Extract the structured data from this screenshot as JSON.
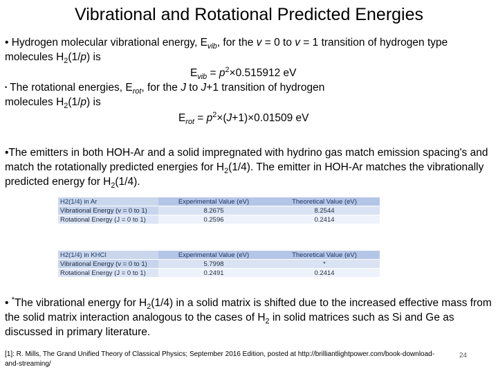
{
  "title": "Vibrational and Rotational Predicted Energies",
  "bullet1": {
    "bullet": "•",
    "text_a": " Hydrogen molecular vibrational energy, E",
    "sub_vib": "vib",
    "text_b": ", for the ",
    "v0": "v",
    "text_c": " = 0 to ",
    "v1": "v",
    "text_d": " = 1 transition of hydrogen type molecules H",
    "sub_2": "2",
    "text_e": "(1/",
    "p": "p",
    "text_f": ") is"
  },
  "eq_vib": {
    "E": "E",
    "sub": "vib",
    "eq": " = ",
    "p": "p",
    "sup": "2",
    "rest": "×0.515912 eV"
  },
  "bullet2": {
    "bullet": "•",
    "text_a": " The rotational energies, E",
    "sub_rot": "rot",
    "text_b": ", for the ",
    "J0": "J",
    "text_c": " to ",
    "J1": "J",
    "text_d": "+1 transition of hydrogen molecules H",
    "sub_2": "2",
    "text_e": "(1/",
    "p": "p",
    "text_f": ") is"
  },
  "eq_rot": {
    "E": "E",
    "sub": "rot",
    "eq": " = ",
    "p": "p",
    "sup": "2",
    "mid": "×(",
    "J": "J",
    "rest": "+1)×0.01509 eV"
  },
  "bullet3": {
    "bullet": "•",
    "text_a": "The emitters in both HOH-Ar and a solid impregnated with hydrino gas match emission spacing's and match the rotationally predicted energies for H",
    "sub_a": "2",
    "text_b": "(1/4). The emitter in HOH-Ar matches the vibrationally predicted energy for H",
    "sub_b": "2",
    "text_c": "(1/4)."
  },
  "table1": {
    "headers": [
      "H2(1/4) in Ar",
      "Experimental Value (eV)",
      "Theoretical Value (eV)"
    ],
    "rows": [
      [
        "Vibrational Energy (v = 0 to 1)",
        "8.2675",
        "8.2544"
      ],
      [
        "Rotational Energy (J = 0 to 1)",
        "0.2596",
        "0.2414"
      ]
    ]
  },
  "table2": {
    "headers": [
      "H2(1/4) in KHCl",
      "Experimental Value (eV)",
      "Theoretical Value (eV)"
    ],
    "rows": [
      [
        "Vibrational Energy (v = 0 to 1)",
        "5.7998",
        "*"
      ],
      [
        "Rotational Energy (J = 0 to 1)",
        "0.2491",
        "0.2414"
      ]
    ]
  },
  "bullet4": {
    "bullet": "•",
    "star": "*",
    "text_a": "The vibrational energy for H",
    "sub_a": "2",
    "text_b": "(1/4) in a solid matrix is shifted due to the increased effective mass from the solid matrix interaction analogous to the cases of H",
    "sub_b": "2",
    "text_c": " in solid matrices such as Si and Ge as discussed in primary literature."
  },
  "reference": "[1]: R. Mills, The Grand Unified Theory of Classical Physics; September 2016 Edition, posted at http://brilliantlightpower.com/book-download-and-streaming/",
  "page_number": "24"
}
